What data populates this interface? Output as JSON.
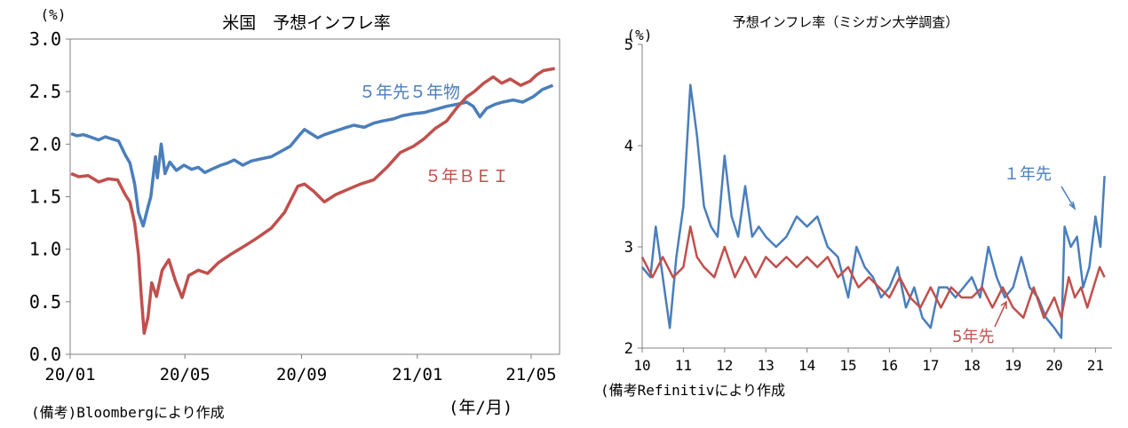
{
  "chart_data": [
    {
      "type": "line",
      "title": "米国　予想インフレ率",
      "unit_label": "(%)",
      "xlabel": "(年/月)",
      "note": "(備考)Bloombergにより作成",
      "ylim": [
        0.0,
        3.0
      ],
      "yticks": [
        "0.0",
        "0.5",
        "1.0",
        "1.5",
        "2.0",
        "2.5",
        "3.0"
      ],
      "xlim": [
        "2020-01-01",
        "2021-05-31"
      ],
      "xticks": [
        {
          "label": "20/01",
          "date": "2020-01-01"
        },
        {
          "label": "20/05",
          "date": "2020-05-01"
        },
        {
          "label": "20/09",
          "date": "2020-09-01"
        },
        {
          "label": "21/01",
          "date": "2021-01-01"
        },
        {
          "label": "21/05",
          "date": "2021-05-01"
        }
      ],
      "grid": false,
      "series": [
        {
          "name": "５年先５年物",
          "color": "#4a7ebb",
          "points": [
            [
              "2020-01-02",
              2.1
            ],
            [
              "2020-01-08",
              2.08
            ],
            [
              "2020-01-15",
              2.09
            ],
            [
              "2020-01-22",
              2.07
            ],
            [
              "2020-01-31",
              2.04
            ],
            [
              "2020-02-07",
              2.07
            ],
            [
              "2020-02-14",
              2.05
            ],
            [
              "2020-02-21",
              2.03
            ],
            [
              "2020-02-28",
              1.9
            ],
            [
              "2020-03-04",
              1.82
            ],
            [
              "2020-03-09",
              1.62
            ],
            [
              "2020-03-13",
              1.35
            ],
            [
              "2020-03-18",
              1.22
            ],
            [
              "2020-03-23",
              1.4
            ],
            [
              "2020-03-26",
              1.5
            ],
            [
              "2020-03-31",
              1.88
            ],
            [
              "2020-04-02",
              1.68
            ],
            [
              "2020-04-06",
              2.0
            ],
            [
              "2020-04-10",
              1.72
            ],
            [
              "2020-04-15",
              1.83
            ],
            [
              "2020-04-22",
              1.75
            ],
            [
              "2020-04-30",
              1.8
            ],
            [
              "2020-05-08",
              1.76
            ],
            [
              "2020-05-15",
              1.78
            ],
            [
              "2020-05-22",
              1.73
            ],
            [
              "2020-05-29",
              1.76
            ],
            [
              "2020-06-08",
              1.8
            ],
            [
              "2020-06-15",
              1.82
            ],
            [
              "2020-06-22",
              1.85
            ],
            [
              "2020-07-01",
              1.8
            ],
            [
              "2020-07-10",
              1.84
            ],
            [
              "2020-07-20",
              1.86
            ],
            [
              "2020-07-31",
              1.88
            ],
            [
              "2020-08-10",
              1.93
            ],
            [
              "2020-08-20",
              1.98
            ],
            [
              "2020-08-31",
              2.1
            ],
            [
              "2020-09-04",
              2.14
            ],
            [
              "2020-09-11",
              2.1
            ],
            [
              "2020-09-18",
              2.06
            ],
            [
              "2020-09-25",
              2.09
            ],
            [
              "2020-10-05",
              2.12
            ],
            [
              "2020-10-15",
              2.15
            ],
            [
              "2020-10-26",
              2.18
            ],
            [
              "2020-11-06",
              2.16
            ],
            [
              "2020-11-16",
              2.2
            ],
            [
              "2020-11-25",
              2.22
            ],
            [
              "2020-12-07",
              2.24
            ],
            [
              "2020-12-16",
              2.27
            ],
            [
              "2020-12-28",
              2.29
            ],
            [
              "2021-01-08",
              2.3
            ],
            [
              "2021-01-20",
              2.33
            ],
            [
              "2021-02-01",
              2.36
            ],
            [
              "2021-02-12",
              2.38
            ],
            [
              "2021-02-22",
              2.4
            ],
            [
              "2021-03-01",
              2.36
            ],
            [
              "2021-03-08",
              2.26
            ],
            [
              "2021-03-15",
              2.34
            ],
            [
              "2021-03-24",
              2.38
            ],
            [
              "2021-04-01",
              2.4
            ],
            [
              "2021-04-12",
              2.42
            ],
            [
              "2021-04-22",
              2.4
            ],
            [
              "2021-05-03",
              2.45
            ],
            [
              "2021-05-13",
              2.52
            ],
            [
              "2021-05-24",
              2.56
            ]
          ]
        },
        {
          "name": "５年ＢＥＩ",
          "color": "#c0504d",
          "points": [
            [
              "2020-01-02",
              1.72
            ],
            [
              "2020-01-10",
              1.69
            ],
            [
              "2020-01-20",
              1.7
            ],
            [
              "2020-01-31",
              1.64
            ],
            [
              "2020-02-10",
              1.67
            ],
            [
              "2020-02-20",
              1.66
            ],
            [
              "2020-02-28",
              1.52
            ],
            [
              "2020-03-04",
              1.45
            ],
            [
              "2020-03-09",
              1.25
            ],
            [
              "2020-03-13",
              0.95
            ],
            [
              "2020-03-16",
              0.55
            ],
            [
              "2020-03-19",
              0.2
            ],
            [
              "2020-03-23",
              0.35
            ],
            [
              "2020-03-27",
              0.68
            ],
            [
              "2020-04-01",
              0.55
            ],
            [
              "2020-04-07",
              0.8
            ],
            [
              "2020-04-14",
              0.9
            ],
            [
              "2020-04-21",
              0.7
            ],
            [
              "2020-04-28",
              0.54
            ],
            [
              "2020-05-05",
              0.75
            ],
            [
              "2020-05-15",
              0.8
            ],
            [
              "2020-05-25",
              0.77
            ],
            [
              "2020-06-05",
              0.87
            ],
            [
              "2020-06-18",
              0.95
            ],
            [
              "2020-07-01",
              1.02
            ],
            [
              "2020-07-15",
              1.1
            ],
            [
              "2020-07-31",
              1.2
            ],
            [
              "2020-08-14",
              1.35
            ],
            [
              "2020-08-28",
              1.6
            ],
            [
              "2020-09-04",
              1.62
            ],
            [
              "2020-09-14",
              1.55
            ],
            [
              "2020-09-25",
              1.45
            ],
            [
              "2020-10-07",
              1.52
            ],
            [
              "2020-10-20",
              1.57
            ],
            [
              "2020-11-02",
              1.62
            ],
            [
              "2020-11-16",
              1.66
            ],
            [
              "2020-11-30",
              1.78
            ],
            [
              "2020-12-14",
              1.92
            ],
            [
              "2020-12-28",
              1.98
            ],
            [
              "2021-01-08",
              2.05
            ],
            [
              "2021-01-20",
              2.15
            ],
            [
              "2021-02-01",
              2.22
            ],
            [
              "2021-02-12",
              2.35
            ],
            [
              "2021-02-22",
              2.45
            ],
            [
              "2021-03-02",
              2.5
            ],
            [
              "2021-03-12",
              2.58
            ],
            [
              "2021-03-22",
              2.64
            ],
            [
              "2021-03-31",
              2.58
            ],
            [
              "2021-04-09",
              2.62
            ],
            [
              "2021-04-20",
              2.56
            ],
            [
              "2021-04-30",
              2.6
            ],
            [
              "2021-05-07",
              2.66
            ],
            [
              "2021-05-14",
              2.7
            ],
            [
              "2021-05-26",
              2.72
            ]
          ]
        }
      ]
    },
    {
      "type": "line",
      "title": "予想インフレ率（ミシガン大学調査）",
      "unit_label": "(%)",
      "note": "(備考Refinitivにより作成",
      "ylim": [
        2,
        5
      ],
      "yticks": [
        "2",
        "3",
        "4",
        "5"
      ],
      "xlim": [
        2010.0,
        2021.4
      ],
      "xticks": [
        "10",
        "11",
        "12",
        "13",
        "14",
        "15",
        "16",
        "17",
        "18",
        "19",
        "20",
        "21"
      ],
      "grid": false,
      "series": [
        {
          "name": "１年先",
          "color": "#4a7ebb",
          "points": [
            [
              2010.0,
              2.8
            ],
            [
              2010.2,
              2.7
            ],
            [
              2010.33,
              3.2
            ],
            [
              2010.5,
              2.7
            ],
            [
              2010.67,
              2.2
            ],
            [
              2010.83,
              2.9
            ],
            [
              2011.0,
              3.4
            ],
            [
              2011.17,
              4.6
            ],
            [
              2011.33,
              4.1
            ],
            [
              2011.5,
              3.4
            ],
            [
              2011.67,
              3.2
            ],
            [
              2011.83,
              3.1
            ],
            [
              2012.0,
              3.9
            ],
            [
              2012.17,
              3.3
            ],
            [
              2012.33,
              3.1
            ],
            [
              2012.5,
              3.6
            ],
            [
              2012.67,
              3.1
            ],
            [
              2012.83,
              3.2
            ],
            [
              2013.0,
              3.1
            ],
            [
              2013.25,
              3.0
            ],
            [
              2013.5,
              3.1
            ],
            [
              2013.75,
              3.3
            ],
            [
              2014.0,
              3.2
            ],
            [
              2014.25,
              3.3
            ],
            [
              2014.5,
              3.0
            ],
            [
              2014.75,
              2.9
            ],
            [
              2015.0,
              2.5
            ],
            [
              2015.2,
              3.0
            ],
            [
              2015.4,
              2.8
            ],
            [
              2015.6,
              2.7
            ],
            [
              2015.8,
              2.5
            ],
            [
              2016.0,
              2.6
            ],
            [
              2016.2,
              2.8
            ],
            [
              2016.4,
              2.4
            ],
            [
              2016.6,
              2.6
            ],
            [
              2016.8,
              2.3
            ],
            [
              2017.0,
              2.2
            ],
            [
              2017.2,
              2.6
            ],
            [
              2017.4,
              2.6
            ],
            [
              2017.6,
              2.5
            ],
            [
              2017.8,
              2.6
            ],
            [
              2018.0,
              2.7
            ],
            [
              2018.2,
              2.5
            ],
            [
              2018.4,
              3.0
            ],
            [
              2018.6,
              2.7
            ],
            [
              2018.8,
              2.5
            ],
            [
              2019.0,
              2.6
            ],
            [
              2019.2,
              2.9
            ],
            [
              2019.4,
              2.6
            ],
            [
              2019.6,
              2.5
            ],
            [
              2019.8,
              2.3
            ],
            [
              2020.0,
              2.2
            ],
            [
              2020.17,
              2.1
            ],
            [
              2020.25,
              3.2
            ],
            [
              2020.4,
              3.0
            ],
            [
              2020.55,
              3.1
            ],
            [
              2020.7,
              2.6
            ],
            [
              2020.85,
              2.8
            ],
            [
              2021.0,
              3.3
            ],
            [
              2021.12,
              3.0
            ],
            [
              2021.22,
              3.7
            ]
          ]
        },
        {
          "name": "5年先",
          "color": "#c0504d",
          "points": [
            [
              2010.0,
              2.9
            ],
            [
              2010.25,
              2.7
            ],
            [
              2010.5,
              2.9
            ],
            [
              2010.75,
              2.7
            ],
            [
              2011.0,
              2.8
            ],
            [
              2011.17,
              3.2
            ],
            [
              2011.33,
              2.9
            ],
            [
              2011.5,
              2.8
            ],
            [
              2011.75,
              2.7
            ],
            [
              2012.0,
              3.0
            ],
            [
              2012.25,
              2.7
            ],
            [
              2012.5,
              2.9
            ],
            [
              2012.75,
              2.7
            ],
            [
              2013.0,
              2.9
            ],
            [
              2013.25,
              2.8
            ],
            [
              2013.5,
              2.9
            ],
            [
              2013.75,
              2.8
            ],
            [
              2014.0,
              2.9
            ],
            [
              2014.25,
              2.8
            ],
            [
              2014.5,
              2.9
            ],
            [
              2014.75,
              2.7
            ],
            [
              2015.0,
              2.8
            ],
            [
              2015.25,
              2.6
            ],
            [
              2015.5,
              2.7
            ],
            [
              2015.75,
              2.6
            ],
            [
              2016.0,
              2.5
            ],
            [
              2016.25,
              2.7
            ],
            [
              2016.5,
              2.5
            ],
            [
              2016.75,
              2.4
            ],
            [
              2017.0,
              2.6
            ],
            [
              2017.25,
              2.4
            ],
            [
              2017.5,
              2.6
            ],
            [
              2017.75,
              2.5
            ],
            [
              2018.0,
              2.5
            ],
            [
              2018.25,
              2.6
            ],
            [
              2018.5,
              2.4
            ],
            [
              2018.75,
              2.6
            ],
            [
              2019.0,
              2.4
            ],
            [
              2019.25,
              2.3
            ],
            [
              2019.5,
              2.6
            ],
            [
              2019.75,
              2.3
            ],
            [
              2020.0,
              2.5
            ],
            [
              2020.17,
              2.3
            ],
            [
              2020.35,
              2.7
            ],
            [
              2020.5,
              2.5
            ],
            [
              2020.65,
              2.6
            ],
            [
              2020.8,
              2.4
            ],
            [
              2020.95,
              2.6
            ],
            [
              2021.1,
              2.8
            ],
            [
              2021.22,
              2.7
            ]
          ]
        }
      ]
    }
  ]
}
